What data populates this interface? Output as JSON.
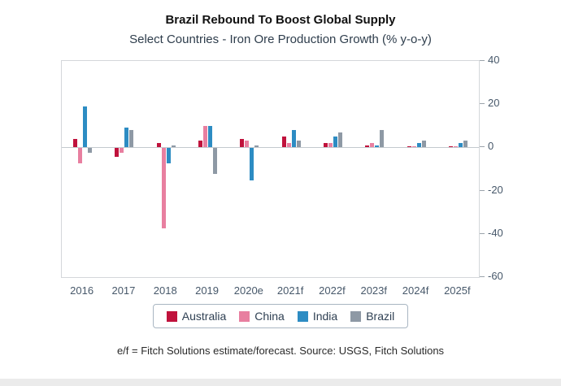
{
  "page": {
    "footnote": "e/f = Fitch Solutions estimate/forecast. Source: USGS, Fitch Solutions"
  },
  "chart_data": {
    "type": "bar",
    "title": "Brazil Rebound To Boost Global Supply",
    "subtitle": "Select Countries - Iron Ore Production Growth (% y-o-y)",
    "categories": [
      "2016",
      "2017",
      "2018",
      "2019",
      "2020e",
      "2021f",
      "2022f",
      "2023f",
      "2024f",
      "2025f"
    ],
    "series": [
      {
        "name": "Australia",
        "color": "#c0123c",
        "values": [
          4,
          -4,
          2,
          3,
          4,
          5,
          2,
          1,
          0.5,
          0.5
        ]
      },
      {
        "name": "China",
        "color": "#e87fa0",
        "values": [
          -7,
          -2,
          -37,
          10,
          3,
          2,
          2,
          2,
          0.5,
          0.5
        ]
      },
      {
        "name": "India",
        "color": "#2d8cc3",
        "values": [
          19,
          9,
          -7,
          10,
          -15,
          8,
          5,
          1,
          2,
          2
        ]
      },
      {
        "name": "Brazil",
        "color": "#8e99a5",
        "values": [
          -2,
          8,
          1,
          -12,
          1,
          3,
          7,
          8,
          3,
          3
        ]
      }
    ],
    "ylim": [
      -60,
      40
    ],
    "yticks": [
      40,
      20,
      0,
      -20,
      -40,
      -60
    ],
    "ylabel": "",
    "xlabel": "",
    "grid": false,
    "zero_line": true,
    "legend_position": "bottom",
    "y_axis_side": "right"
  }
}
